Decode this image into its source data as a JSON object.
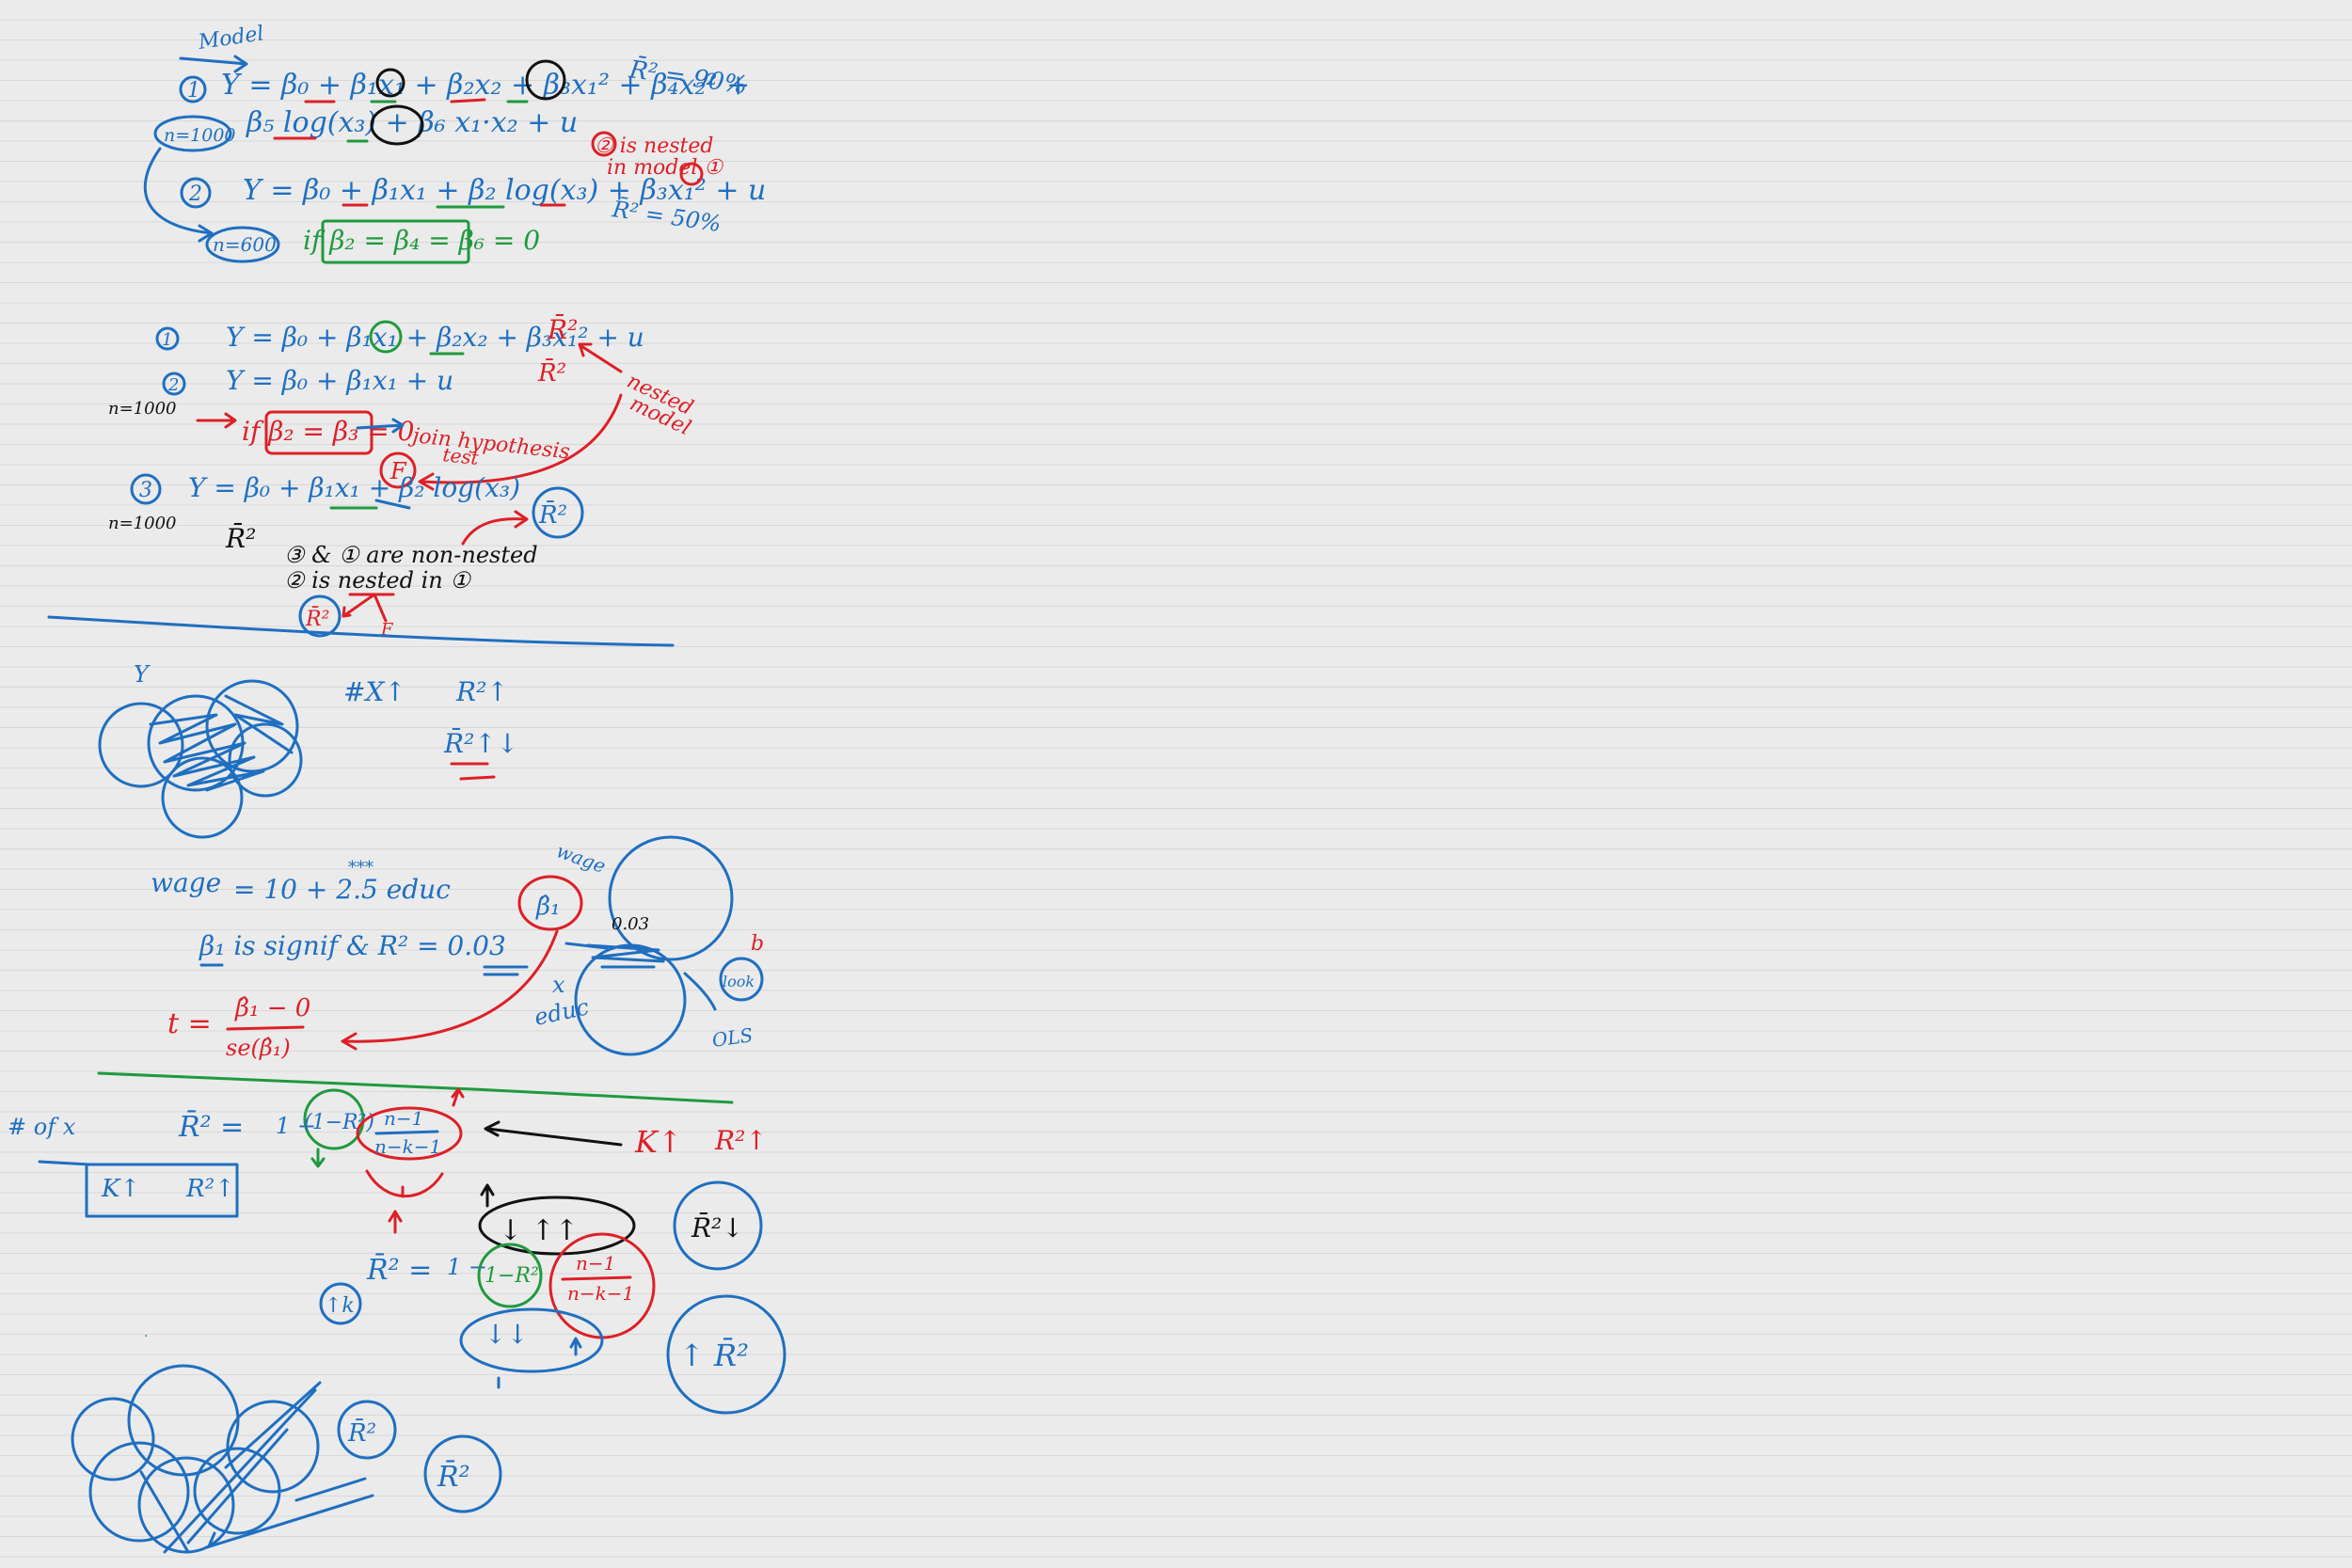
{
  "section1": {
    "model_label": "Model",
    "model1": {
      "num": "1",
      "line1": "Y = β₀ + β₁x₁ + β₂x₂ + β₃x₁² + β₄x₂² +",
      "line2": "β₅ log(x₃) + β₆ x₁·x₂ + u",
      "n": "n=1000"
    },
    "model2": {
      "num": "2",
      "line": "Y = β₀ + β₁x₁ + β₂ log(x₃) + β₃x₁² + u",
      "n": "n=600"
    },
    "r2_model1": "R̄² = 90%",
    "r2_model2": "R̄² = 50%",
    "nested_note_line1": "② is nested",
    "nested_note_line2": "in model ①",
    "restriction": "if β₂ = β₄ = β₆ = 0"
  },
  "section2": {
    "model1": {
      "num": "1",
      "line": "Y = β₀ + β₁x₁ + β₂x₂ + β₃x₁² + u"
    },
    "model2": {
      "num": "2",
      "line": "Y = β₀ + β₁x₁ + u"
    },
    "n_first": "n=1000",
    "restriction": "if β₂ = β₃ = 0",
    "joint_test_line1": "join hypothesis",
    "joint_test_line2": "test",
    "f_circle": "F",
    "r2_top": "R̄²",
    "r2_second": "R̄²",
    "nested_model_line1": "nested",
    "nested_model_line2": "model",
    "model3": {
      "num": "3",
      "line": "Y = β₀ + β₁x₁ + β₂ log(x₃)"
    },
    "n_third": "n=1000",
    "r2_left": "R̄²",
    "r2_circle": "R̄²",
    "non_nested": "③ & ① are non-nested",
    "is_nested": "② is nested in ①",
    "r2_small_circle": "R̄²",
    "f_small": "F"
  },
  "venn1": {
    "y_label": "Y",
    "x_count": "#X↑",
    "r2_up": "R²↑",
    "r2bar_updown": "R̄²↑↓"
  },
  "section3": {
    "wage_eq_lhs": "wage",
    "wage_eq_rhs": "= 10 + 2.5 educ",
    "stars": "***",
    "signif_line": "β₁ is signif & R² = 0.03",
    "t_stat_lhs": "t =",
    "t_num": "β̂₁ − 0",
    "t_den": "se(β̂₁)",
    "venn_wage": "wage",
    "beta_hat": "β̂₁",
    "overlap_value": "0.03",
    "x_label": "x",
    "educ_label": "educ",
    "look": "look",
    "other": "OLS",
    "b_label": "b"
  },
  "section4": {
    "x_count_label": "# of x",
    "formula_lhs": "R̄² =",
    "formula_one": "1 −",
    "one_minus_r2": "(1−R²)",
    "fraction_num": "n−1",
    "fraction_den": "n−k−1",
    "k_up": "K↑",
    "r2_up": "R²↑",
    "box_k": "K↑",
    "box_r2": "R²↑",
    "arrows_label": "↓     ↑↑",
    "r2bar_down": "R̄²↓",
    "formula2_lhs": "R̄² =",
    "formula2_one": "1 −",
    "formula2_green": "1−R²",
    "formula2_num": "n−1",
    "formula2_den": "n−k−1",
    "k_up_circle": "↑k",
    "down_down": "↓↓",
    "r2bar_up": "↑ R̄²",
    "r2bar_bottom1": "R̄²",
    "r2bar_bottom2": "R̄²"
  }
}
